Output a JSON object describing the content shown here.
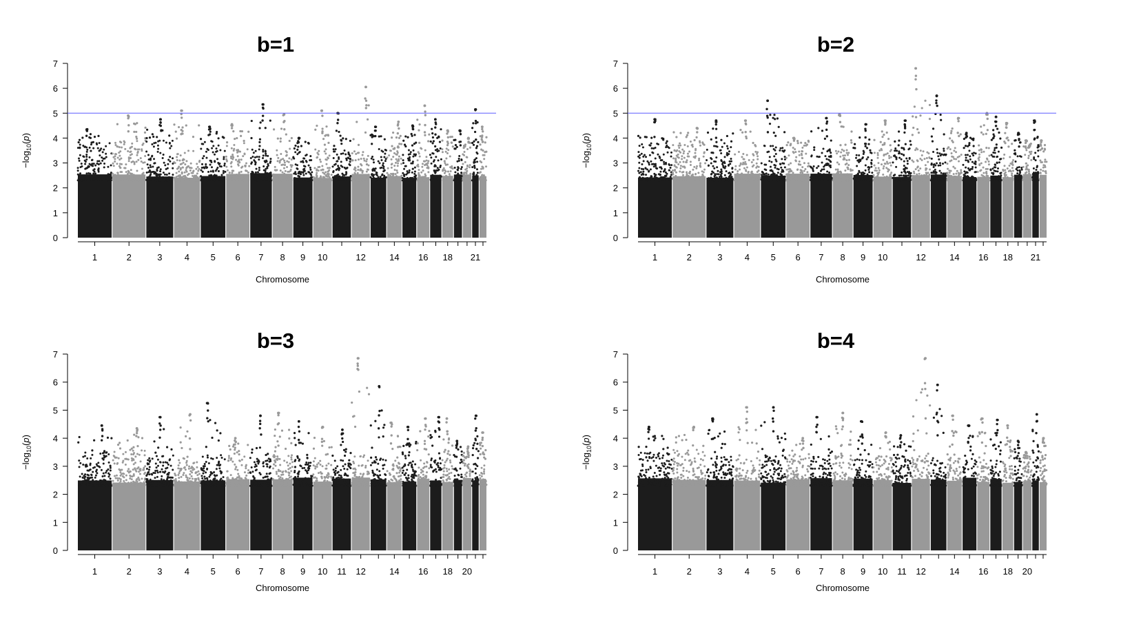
{
  "chart_data": [
    {
      "type": "scatter",
      "subtype": "manhattan",
      "title": "b=1",
      "xlabel": "Chromosome",
      "ylabel": "-log10(p)",
      "ylim": [
        0,
        7
      ],
      "yticks": [
        "0",
        "1",
        "2",
        "3",
        "4",
        "5",
        "6",
        "7"
      ],
      "xtick_labels": [
        "1",
        "2",
        "3",
        "4",
        "5",
        "6",
        "7",
        "8",
        "9",
        "10",
        "12",
        "14",
        "16",
        "18",
        "21"
      ],
      "threshold_line": 5,
      "chromosomes": [
        "1",
        "2",
        "3",
        "4",
        "5",
        "6",
        "7",
        "8",
        "9",
        "10",
        "11",
        "12",
        "13",
        "14",
        "15",
        "16",
        "17",
        "18",
        "19",
        "20",
        "21",
        "22"
      ],
      "chromosome_bulk_max": [
        3.8,
        3.9,
        3.9,
        3.5,
        3.9,
        3.8,
        3.6,
        3.6,
        3.5,
        3.6,
        3.6,
        3.6,
        3.6,
        3.6,
        3.6,
        3.6,
        3.6,
        3.6,
        3.5,
        3.6,
        3.5,
        3.4
      ],
      "top_hits": [
        {
          "chrom": "1",
          "p": 4.35
        },
        {
          "chrom": "2",
          "p": 4.9
        },
        {
          "chrom": "3",
          "p": 4.75
        },
        {
          "chrom": "4",
          "p": 5.1
        },
        {
          "chrom": "5",
          "p": 4.45
        },
        {
          "chrom": "6",
          "p": 4.55
        },
        {
          "chrom": "7",
          "p": 5.35
        },
        {
          "chrom": "8",
          "p": 4.95
        },
        {
          "chrom": "9",
          "p": 4.0
        },
        {
          "chrom": "10",
          "p": 5.1
        },
        {
          "chrom": "11",
          "p": 5.0
        },
        {
          "chrom": "12",
          "p": 6.05
        },
        {
          "chrom": "13",
          "p": 4.45
        },
        {
          "chrom": "14",
          "p": 4.65
        },
        {
          "chrom": "15",
          "p": 4.5
        },
        {
          "chrom": "16",
          "p": 5.3
        },
        {
          "chrom": "17",
          "p": 4.75
        },
        {
          "chrom": "18",
          "p": 4.3
        },
        {
          "chrom": "19",
          "p": 4.3
        },
        {
          "chrom": "20",
          "p": 4.0
        },
        {
          "chrom": "21",
          "p": 5.15
        },
        {
          "chrom": "22",
          "p": 4.45
        }
      ]
    },
    {
      "type": "scatter",
      "subtype": "manhattan",
      "title": "b=2",
      "xlabel": "Chromosome",
      "ylabel": "-log10(p)",
      "ylim": [
        0,
        7
      ],
      "yticks": [
        "0",
        "1",
        "2",
        "3",
        "4",
        "5",
        "6",
        "7"
      ],
      "xtick_labels": [
        "1",
        "2",
        "3",
        "4",
        "5",
        "6",
        "7",
        "8",
        "9",
        "10",
        "12",
        "14",
        "16",
        "18",
        "21"
      ],
      "threshold_line": 5,
      "chromosomes": [
        "1",
        "2",
        "3",
        "4",
        "5",
        "6",
        "7",
        "8",
        "9",
        "10",
        "11",
        "12",
        "13",
        "14",
        "15",
        "16",
        "17",
        "18",
        "19",
        "20",
        "21",
        "22"
      ],
      "chromosome_bulk_max": [
        3.8,
        3.9,
        3.8,
        3.5,
        3.8,
        3.7,
        3.6,
        3.6,
        3.5,
        3.6,
        3.6,
        3.6,
        3.6,
        3.6,
        3.6,
        3.6,
        3.6,
        3.6,
        3.5,
        3.6,
        3.5,
        3.4
      ],
      "top_hits": [
        {
          "chrom": "1",
          "p": 4.75
        },
        {
          "chrom": "2",
          "p": 4.4
        },
        {
          "chrom": "3",
          "p": 4.7
        },
        {
          "chrom": "4",
          "p": 4.7
        },
        {
          "chrom": "5",
          "p": 5.5
        },
        {
          "chrom": "6",
          "p": 4.0
        },
        {
          "chrom": "7",
          "p": 4.8
        },
        {
          "chrom": "8",
          "p": 4.95
        },
        {
          "chrom": "9",
          "p": 4.55
        },
        {
          "chrom": "10",
          "p": 4.7
        },
        {
          "chrom": "11",
          "p": 4.7
        },
        {
          "chrom": "12",
          "p": 6.8
        },
        {
          "chrom": "13",
          "p": 5.7
        },
        {
          "chrom": "14",
          "p": 4.8
        },
        {
          "chrom": "15",
          "p": 4.2
        },
        {
          "chrom": "16",
          "p": 5.0
        },
        {
          "chrom": "17",
          "p": 4.85
        },
        {
          "chrom": "18",
          "p": 4.6
        },
        {
          "chrom": "19",
          "p": 4.2
        },
        {
          "chrom": "20",
          "p": 3.9
        },
        {
          "chrom": "21",
          "p": 4.7
        },
        {
          "chrom": "22",
          "p": 3.9
        }
      ]
    },
    {
      "type": "scatter",
      "subtype": "manhattan",
      "title": "b=3",
      "xlabel": "Chromosome",
      "ylabel": "-log10(p)",
      "ylim": [
        0,
        7
      ],
      "yticks": [
        "0",
        "1",
        "2",
        "3",
        "4",
        "5",
        "6",
        "7"
      ],
      "xtick_labels": [
        "1",
        "2",
        "3",
        "4",
        "5",
        "6",
        "7",
        "8",
        "9",
        "10",
        "11",
        "12",
        "14",
        "16",
        "18",
        "20"
      ],
      "threshold_line": null,
      "chromosomes": [
        "1",
        "2",
        "3",
        "4",
        "5",
        "6",
        "7",
        "8",
        "9",
        "10",
        "11",
        "12",
        "13",
        "14",
        "15",
        "16",
        "17",
        "18",
        "19",
        "20",
        "21",
        "22"
      ],
      "chromosome_bulk_max": [
        3.5,
        3.6,
        3.4,
        3.3,
        3.4,
        3.4,
        3.3,
        3.4,
        3.3,
        3.3,
        3.3,
        3.4,
        3.3,
        3.3,
        3.3,
        3.3,
        3.3,
        3.3,
        3.2,
        3.2,
        3.2,
        3.1
      ],
      "top_hits": [
        {
          "chrom": "1",
          "p": 4.45
        },
        {
          "chrom": "2",
          "p": 4.35
        },
        {
          "chrom": "3",
          "p": 4.75
        },
        {
          "chrom": "4",
          "p": 4.85
        },
        {
          "chrom": "5",
          "p": 5.25
        },
        {
          "chrom": "6",
          "p": 4.0
        },
        {
          "chrom": "7",
          "p": 4.8
        },
        {
          "chrom": "8",
          "p": 4.9
        },
        {
          "chrom": "9",
          "p": 4.6
        },
        {
          "chrom": "10",
          "p": 4.4
        },
        {
          "chrom": "11",
          "p": 4.3
        },
        {
          "chrom": "12",
          "p": 6.85
        },
        {
          "chrom": "13",
          "p": 5.85
        },
        {
          "chrom": "14",
          "p": 4.55
        },
        {
          "chrom": "15",
          "p": 4.4
        },
        {
          "chrom": "16",
          "p": 4.7
        },
        {
          "chrom": "17",
          "p": 4.75
        },
        {
          "chrom": "18",
          "p": 4.7
        },
        {
          "chrom": "19",
          "p": 3.9
        },
        {
          "chrom": "20",
          "p": 3.7
        },
        {
          "chrom": "21",
          "p": 4.8
        },
        {
          "chrom": "22",
          "p": 4.2
        }
      ]
    },
    {
      "type": "scatter",
      "subtype": "manhattan",
      "title": "b=4",
      "xlabel": "Chromosome",
      "ylabel": "-log10(p)",
      "ylim": [
        0,
        7
      ],
      "yticks": [
        "0",
        "1",
        "2",
        "3",
        "4",
        "5",
        "6",
        "7"
      ],
      "xtick_labels": [
        "1",
        "2",
        "3",
        "4",
        "5",
        "6",
        "7",
        "8",
        "9",
        "10",
        "11",
        "12",
        "14",
        "16",
        "18",
        "20"
      ],
      "threshold_line": null,
      "chromosomes": [
        "1",
        "2",
        "3",
        "4",
        "5",
        "6",
        "7",
        "8",
        "9",
        "10",
        "11",
        "12",
        "13",
        "14",
        "15",
        "16",
        "17",
        "18",
        "19",
        "20",
        "21",
        "22"
      ],
      "chromosome_bulk_max": [
        3.5,
        3.6,
        3.4,
        3.3,
        3.4,
        3.4,
        3.3,
        3.4,
        3.3,
        3.3,
        3.3,
        3.4,
        3.3,
        3.3,
        3.3,
        3.3,
        3.3,
        3.3,
        3.2,
        3.2,
        3.2,
        3.1
      ],
      "top_hits": [
        {
          "chrom": "1",
          "p": 4.4
        },
        {
          "chrom": "2",
          "p": 4.4
        },
        {
          "chrom": "3",
          "p": 4.7
        },
        {
          "chrom": "4",
          "p": 5.1
        },
        {
          "chrom": "5",
          "p": 5.1
        },
        {
          "chrom": "6",
          "p": 4.0
        },
        {
          "chrom": "7",
          "p": 4.75
        },
        {
          "chrom": "8",
          "p": 4.9
        },
        {
          "chrom": "9",
          "p": 4.6
        },
        {
          "chrom": "10",
          "p": 4.2
        },
        {
          "chrom": "11",
          "p": 4.1
        },
        {
          "chrom": "12",
          "p": 6.85
        },
        {
          "chrom": "13",
          "p": 5.9
        },
        {
          "chrom": "14",
          "p": 4.8
        },
        {
          "chrom": "15",
          "p": 4.45
        },
        {
          "chrom": "16",
          "p": 4.7
        },
        {
          "chrom": "17",
          "p": 4.65
        },
        {
          "chrom": "18",
          "p": 4.45
        },
        {
          "chrom": "19",
          "p": 3.9
        },
        {
          "chrom": "20",
          "p": 3.5
        },
        {
          "chrom": "21",
          "p": 4.85
        },
        {
          "chrom": "22",
          "p": 4.0
        }
      ]
    }
  ],
  "colors": {
    "dark_points": "#1c1c1c",
    "light_points": "#999999",
    "threshold": "#5b5bff",
    "axis": "#000000"
  }
}
